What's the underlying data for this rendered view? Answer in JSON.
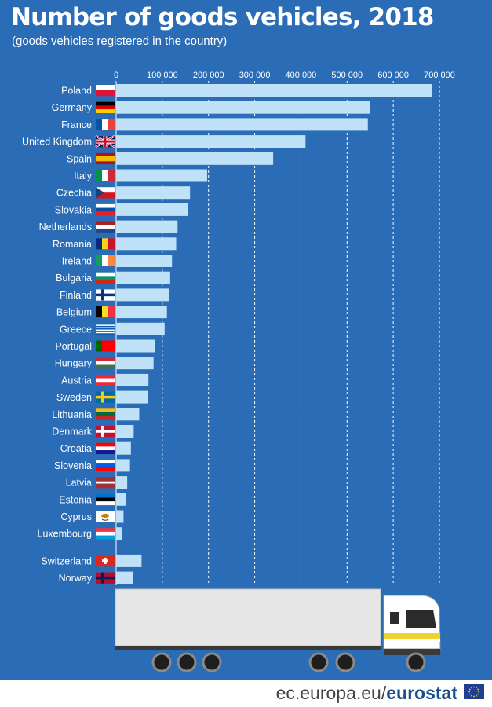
{
  "title": "Number of goods vehicles, 2018",
  "subtitle": "(goods vehicles registered in the country)",
  "footer": {
    "site_prefix": "ec.europa.eu/",
    "site_brand": "eurostat"
  },
  "colors": {
    "background": "#2a6cb6",
    "bar": "#bfe2f8",
    "text": "#ffffff"
  },
  "chart_data": {
    "type": "bar",
    "orientation": "horizontal",
    "title": "Number of goods vehicles, 2018",
    "subtitle": "(goods vehicles registered in the country)",
    "xlim": [
      0,
      700000
    ],
    "ticks": [
      0,
      100000,
      200000,
      300000,
      400000,
      500000,
      600000,
      700000
    ],
    "tick_labels": [
      "0",
      "100 000",
      "200 000",
      "300 000",
      "400 000",
      "500 000",
      "600 000",
      "700 000"
    ],
    "grid": true,
    "categories": [
      "Poland",
      "Germany",
      "France",
      "United Kingdom",
      "Spain",
      "Italy",
      "Czechia",
      "Slovakia",
      "Netherlands",
      "Romania",
      "Ireland",
      "Bulgaria",
      "Finland",
      "Belgium",
      "Greece",
      "Portugal",
      "Hungary",
      "Austria",
      "Sweden",
      "Lithuania",
      "Denmark",
      "Croatia",
      "Slovenia",
      "Latvia",
      "Estonia",
      "Cyprus",
      "Luxembourg",
      "Switzerland",
      "Norway"
    ],
    "values": [
      684000,
      550000,
      545000,
      410000,
      340000,
      197000,
      160000,
      156000,
      133000,
      130000,
      121000,
      117000,
      115000,
      110000,
      105000,
      84000,
      81000,
      70000,
      68000,
      50000,
      38000,
      32000,
      30000,
      24000,
      21000,
      16000,
      13000,
      55000,
      36000
    ],
    "flags": [
      {
        "stripes": [
          "#ffffff",
          "#dc143c"
        ],
        "dir": "h"
      },
      {
        "stripes": [
          "#000000",
          "#dd0000",
          "#ffce00"
        ],
        "dir": "h"
      },
      {
        "stripes": [
          "#0055a4",
          "#ffffff",
          "#ef4135"
        ],
        "dir": "v"
      },
      {
        "stripes": [
          "#012169"
        ],
        "dir": "h",
        "emblem": "union"
      },
      {
        "stripes": [
          "#aa151b",
          "#f1bf00",
          "#f1bf00",
          "#aa151b"
        ],
        "dir": "h"
      },
      {
        "stripes": [
          "#009246",
          "#ffffff",
          "#ce2b37"
        ],
        "dir": "v"
      },
      {
        "stripes": [
          "#ffffff",
          "#d7141a"
        ],
        "dir": "h",
        "emblem": "wedge"
      },
      {
        "stripes": [
          "#ffffff",
          "#0b4ea2",
          "#ee1c25"
        ],
        "dir": "h"
      },
      {
        "stripes": [
          "#ae1c28",
          "#ffffff",
          "#21468b"
        ],
        "dir": "h"
      },
      {
        "stripes": [
          "#002b7f",
          "#fcd116",
          "#ce1126"
        ],
        "dir": "v"
      },
      {
        "stripes": [
          "#169b62",
          "#ffffff",
          "#ff883e"
        ],
        "dir": "v"
      },
      {
        "stripes": [
          "#ffffff",
          "#00966e",
          "#d62612"
        ],
        "dir": "h"
      },
      {
        "stripes": [
          "#ffffff"
        ],
        "dir": "h",
        "emblem": "nordic",
        "cross": "#003580"
      },
      {
        "stripes": [
          "#000000",
          "#fdda24",
          "#ef3340"
        ],
        "dir": "v"
      },
      {
        "stripes": [
          "#0d5eaf",
          "#ffffff",
          "#0d5eaf",
          "#ffffff",
          "#0d5eaf",
          "#ffffff",
          "#0d5eaf",
          "#ffffff",
          "#0d5eaf"
        ],
        "dir": "h"
      },
      {
        "stripes": [
          "#006600",
          "#ff0000",
          "#ff0000"
        ],
        "dir": "v"
      },
      {
        "stripes": [
          "#ce2939",
          "#ffffff",
          "#477050"
        ],
        "dir": "h"
      },
      {
        "stripes": [
          "#ed2939",
          "#ffffff",
          "#ed2939"
        ],
        "dir": "h"
      },
      {
        "stripes": [
          "#006aa7"
        ],
        "dir": "h",
        "emblem": "nordic",
        "cross": "#fecc00"
      },
      {
        "stripes": [
          "#fdb913",
          "#006a44",
          "#c1272d"
        ],
        "dir": "h"
      },
      {
        "stripes": [
          "#c8102e"
        ],
        "dir": "h",
        "emblem": "nordic",
        "cross": "#ffffff"
      },
      {
        "stripes": [
          "#ff0000",
          "#ffffff",
          "#171796"
        ],
        "dir": "h"
      },
      {
        "stripes": [
          "#ffffff",
          "#005ce5",
          "#ff0000"
        ],
        "dir": "h"
      },
      {
        "stripes": [
          "#9e3039",
          "#9e3039",
          "#ffffff",
          "#9e3039",
          "#9e3039"
        ],
        "dir": "h"
      },
      {
        "stripes": [
          "#0072ce",
          "#000000",
          "#ffffff"
        ],
        "dir": "h"
      },
      {
        "stripes": [
          "#ffffff"
        ],
        "dir": "h",
        "emblem": "cyprus"
      },
      {
        "stripes": [
          "#ef3340",
          "#ffffff",
          "#00a3e0"
        ],
        "dir": "h"
      },
      {
        "stripes": [
          "#da291c"
        ],
        "dir": "h",
        "emblem": "swiss"
      },
      {
        "stripes": [
          "#ba0c2f"
        ],
        "dir": "h",
        "emblem": "nordic",
        "cross": "#00205b"
      }
    ]
  }
}
